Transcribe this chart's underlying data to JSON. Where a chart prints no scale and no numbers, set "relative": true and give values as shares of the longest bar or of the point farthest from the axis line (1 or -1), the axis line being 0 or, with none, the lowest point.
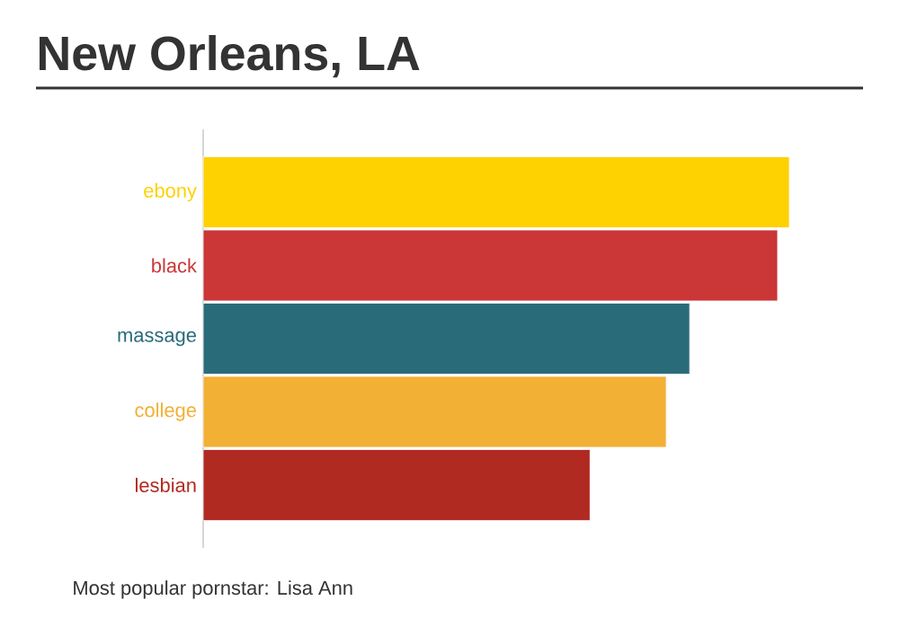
{
  "chart_data": {
    "type": "bar",
    "orientation": "horizontal",
    "relative": true,
    "title": "New Orleans, LA",
    "categories": [
      "ebony",
      "black",
      "massage",
      "college",
      "lesbian"
    ],
    "values": [
      1,
      0.98,
      0.83,
      0.79,
      0.66
    ],
    "colors": [
      "#fed100",
      "#cb3637",
      "#2a6b7a",
      "#f2b035",
      "#b02a22"
    ],
    "annotations": [
      "Most popular pornstar: Lisa Ann"
    ]
  }
}
